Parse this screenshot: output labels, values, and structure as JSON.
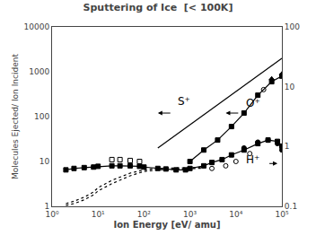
{
  "chart_data": {
    "type": "line",
    "title": "Sputtering of Ice  [< 100K]",
    "xlabel": "Ion Energy [eV/ amu]",
    "ylabel": "Molecules Ejected/ Ion Incident",
    "log": true,
    "grid": false,
    "xlim": [
      1,
      100000
    ],
    "xticks": [
      {
        "value": 1,
        "label": "10⁰"
      },
      {
        "value": 10,
        "label": "10¹"
      },
      {
        "value": 100,
        "label": "10²"
      },
      {
        "value": 1000,
        "label": "10³"
      },
      {
        "value": 10000,
        "label": "10⁴"
      },
      {
        "value": 100000,
        "label": "10⁵"
      }
    ],
    "ylim": [
      1,
      10000
    ],
    "yticks": [
      1,
      10,
      100,
      1000,
      10000
    ],
    "y2lim": [
      0.1,
      100
    ],
    "y2ticks": [
      0.1,
      1,
      10,
      100
    ],
    "series": [
      {
        "type": "line",
        "color": "black",
        "marker": "none",
        "line_style": "solid",
        "x": [
          200,
          100000
        ],
        "values": [
          20,
          2000
        ]
      },
      {
        "type": "line",
        "color": "black",
        "marker": "square",
        "line_style": "solid",
        "x": [
          1000,
          2000,
          4000,
          8000,
          15000,
          30000,
          60000,
          100000
        ],
        "values": [
          10,
          18,
          30,
          60,
          120,
          300,
          600,
          800
        ]
      },
      {
        "type": "scatter",
        "color": "black",
        "marker": "triangle",
        "line_style": "none",
        "x": [
          60000,
          100000
        ],
        "values": [
          700,
          900
        ]
      },
      {
        "type": "scatter",
        "color": "black",
        "marker": "open circle",
        "line_style": "none",
        "x": [
          3000,
          6000,
          10000,
          20000,
          40000
        ],
        "values": [
          7,
          8,
          10,
          15,
          400
        ]
      },
      {
        "type": "line",
        "color": "black",
        "marker": "square",
        "line_style": "solid",
        "x": [
          2,
          3,
          5,
          8,
          10,
          20,
          30,
          50,
          80,
          100,
          200,
          300,
          500,
          800,
          1000,
          2000,
          3000,
          5000,
          8000,
          15000,
          30000,
          50000,
          80000,
          100000
        ],
        "values": [
          6.5,
          7.0,
          7.3,
          7.5,
          7.8,
          8.0,
          8.0,
          8.0,
          7.8,
          7.5,
          7.0,
          6.8,
          6.5,
          6.5,
          7.0,
          8.0,
          9.5,
          11,
          14,
          18,
          25,
          30,
          28,
          22
        ]
      },
      {
        "type": "scatter",
        "color": "black",
        "marker": "circle",
        "line_style": "none",
        "x": [
          15000,
          30000,
          50000,
          80000,
          100000
        ],
        "values": [
          20,
          27,
          30,
          25,
          18
        ]
      },
      {
        "type": "scatter",
        "color": "black",
        "marker": "open square",
        "line_style": "none",
        "x": [
          20,
          30,
          50,
          80
        ],
        "values": [
          11,
          11,
          10.5,
          10
        ]
      },
      {
        "type": "line",
        "color": "black",
        "marker": "none",
        "line_style": "dotted",
        "x": [
          2,
          3,
          5,
          8,
          10,
          20,
          50,
          100,
          200,
          500,
          1000,
          2000
        ],
        "values": [
          1.15,
          1.3,
          1.6,
          2.1,
          2.6,
          3.8,
          5.5,
          6.5,
          7.0,
          7.2,
          7.3,
          7.4
        ]
      },
      {
        "type": "line",
        "color": "black",
        "marker": "none",
        "line_style": "dotted",
        "x": [
          2,
          3,
          5,
          8,
          10,
          20,
          50,
          100,
          200,
          500,
          1000,
          2000
        ],
        "values": [
          1.05,
          1.15,
          1.4,
          1.8,
          2.2,
          3.2,
          4.8,
          6.0,
          6.5,
          6.8,
          7.0,
          7.1
        ]
      }
    ],
    "annotations": [
      {
        "text": "S⁺",
        "x": 500,
        "y": 220
      },
      {
        "text": "O⁺",
        "x": 15000,
        "y": 200
      },
      {
        "text": "H⁺",
        "x": 15000,
        "y": 11
      }
    ],
    "arrows": [
      {
        "x1": 400,
        "y1": 120,
        "x2": 200,
        "y2": 120
      },
      {
        "x1": 12000,
        "y1": 120,
        "x2": 6000,
        "y2": 120
      },
      {
        "x1": 50000,
        "y1": 9,
        "x2": 80000,
        "y2": 9
      }
    ]
  }
}
